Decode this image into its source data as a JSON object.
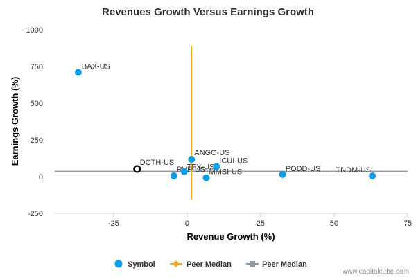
{
  "chart_data": {
    "type": "scatter",
    "title": "Revenues Growth Versus Earnings Growth",
    "xlabel": "Revenue Growth (%)",
    "ylabel": "Earnings Growth (%)",
    "xlim": [
      -45,
      75
    ],
    "ylim": [
      -250,
      1000
    ],
    "x_ticks": [
      -25,
      0,
      25,
      50,
      75
    ],
    "y_ticks": [
      -250,
      0,
      250,
      500,
      750,
      1000
    ],
    "tick_labels_x": [
      "-25",
      "0",
      "25",
      "50",
      "75"
    ],
    "tick_labels_y": [
      "-250",
      "0",
      "250",
      "500",
      "750",
      "1000"
    ],
    "grid": false,
    "points": [
      {
        "label": "BAX-US",
        "x": -37,
        "y": 710,
        "style": "symbol"
      },
      {
        "label": "DCTH-US",
        "x": -17,
        "y": 52,
        "style": "highlight"
      },
      {
        "label": "RVP-US",
        "x": -4.5,
        "y": 5,
        "style": "symbol"
      },
      {
        "label": "TFX-US",
        "x": -1,
        "y": 35,
        "style": "symbol"
      },
      {
        "label": "ANGO-US",
        "x": 1.5,
        "y": 118,
        "style": "symbol"
      },
      {
        "label": "MMSI-US",
        "x": 6.5,
        "y": -8,
        "style": "symbol"
      },
      {
        "label": "ICUI-US",
        "x": 10,
        "y": 68,
        "style": "symbol"
      },
      {
        "label": "PODD-US",
        "x": 32.5,
        "y": 15,
        "style": "symbol"
      },
      {
        "label": "TNDM-US",
        "x": 63,
        "y": 5,
        "style": "symbol"
      }
    ],
    "peer_median_x": 1.5,
    "peer_median_x_range": [
      -160,
      890
    ],
    "peer_median_y": 35,
    "legend": {
      "placement": "bottom",
      "entries": [
        {
          "name": "Symbol",
          "color": "#0c9fe8",
          "marker": "circle"
        },
        {
          "name": "Peer Median",
          "color": "#f5a623",
          "marker": "diamond-line"
        },
        {
          "name": "Peer Median",
          "color": "#8e99a6",
          "marker": "square-line"
        }
      ]
    },
    "colors": {
      "symbol": "#0c9fe8",
      "highlight_stroke": "#000000",
      "vertical_median": "#f5a623",
      "horizontal_median": "#8e99a6",
      "axis": "#c0d0e0"
    }
  },
  "credit": "www.capitalcube.com"
}
